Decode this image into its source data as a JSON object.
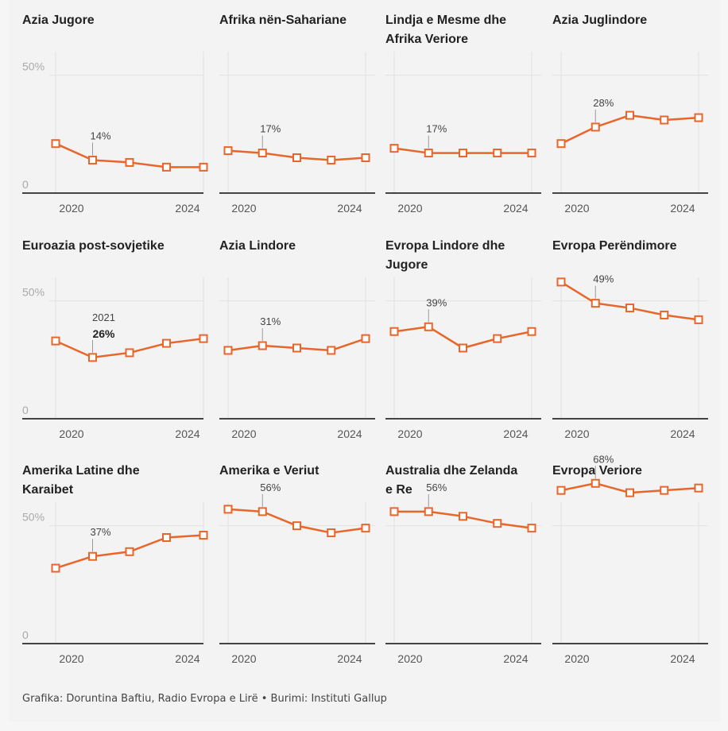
{
  "colors": {
    "series": "#e8662a",
    "grid": "#e2e2e2",
    "axis": "#444444",
    "background": "#f3f3f3"
  },
  "chart_data": [
    {
      "type": "line",
      "title": "Azia Jugore",
      "x": [
        2020,
        2021,
        2022,
        2023,
        2024
      ],
      "values": [
        21,
        14,
        13,
        11,
        11
      ],
      "annotation": {
        "x": 2021,
        "text": "14%"
      },
      "ylim": [
        0,
        60
      ],
      "yticks": [
        "50%",
        "0"
      ],
      "xticks": [
        "2020",
        "2024"
      ]
    },
    {
      "type": "line",
      "title": "Afrika nën-Sahariane",
      "x": [
        2020,
        2021,
        2022,
        2023,
        2024
      ],
      "values": [
        18,
        17,
        15,
        14,
        15
      ],
      "annotation": {
        "x": 2021,
        "text": "17%"
      },
      "ylim": [
        0,
        60
      ],
      "xticks": [
        "2020",
        "2024"
      ]
    },
    {
      "type": "line",
      "title": "Lindja e Mesme dhe Afrika Veriore",
      "x": [
        2020,
        2021,
        2022,
        2023,
        2024
      ],
      "values": [
        19,
        17,
        17,
        17,
        17
      ],
      "annotation": {
        "x": 2021,
        "text": "17%"
      },
      "ylim": [
        0,
        60
      ],
      "xticks": [
        "2020",
        "2024"
      ]
    },
    {
      "type": "line",
      "title": "Azia Juglindore",
      "x": [
        2020,
        2021,
        2022,
        2023,
        2024
      ],
      "values": [
        21,
        28,
        33,
        31,
        32
      ],
      "annotation": {
        "x": 2021,
        "text": "28%"
      },
      "ylim": [
        0,
        60
      ],
      "xticks": [
        "2020",
        "2024"
      ]
    },
    {
      "type": "line",
      "title": "Euroazia post-sovjetike",
      "x": [
        2020,
        2021,
        2022,
        2023,
        2024
      ],
      "values": [
        33,
        26,
        28,
        32,
        34
      ],
      "annotation": {
        "x": 2021,
        "text": "26%",
        "year": "2021",
        "bold": true
      },
      "ylim": [
        0,
        60
      ],
      "yticks": [
        "50%",
        "0"
      ],
      "xticks": [
        "2020",
        "2024"
      ]
    },
    {
      "type": "line",
      "title": "Azia Lindore",
      "x": [
        2020,
        2021,
        2022,
        2023,
        2024
      ],
      "values": [
        29,
        31,
        30,
        29,
        34
      ],
      "annotation": {
        "x": 2021,
        "text": "31%"
      },
      "ylim": [
        0,
        60
      ],
      "xticks": [
        "2020",
        "2024"
      ]
    },
    {
      "type": "line",
      "title": "Evropa Lindore dhe Jugore",
      "x": [
        2020,
        2021,
        2022,
        2023,
        2024
      ],
      "values": [
        37,
        39,
        30,
        34,
        37
      ],
      "annotation": {
        "x": 2021,
        "text": "39%"
      },
      "ylim": [
        0,
        60
      ],
      "xticks": [
        "2020",
        "2024"
      ]
    },
    {
      "type": "line",
      "title": "Evropa Perëndimore",
      "x": [
        2020,
        2021,
        2022,
        2023,
        2024
      ],
      "values": [
        58,
        49,
        47,
        44,
        42
      ],
      "annotation": {
        "x": 2021,
        "text": "49%"
      },
      "ylim": [
        0,
        60
      ],
      "xticks": [
        "2020",
        "2024"
      ]
    },
    {
      "type": "line",
      "title": "Amerika Latine dhe Karaibet",
      "x": [
        2020,
        2021,
        2022,
        2023,
        2024
      ],
      "values": [
        32,
        37,
        39,
        45,
        46
      ],
      "annotation": {
        "x": 2021,
        "text": "37%"
      },
      "ylim": [
        0,
        60
      ],
      "yticks": [
        "50%",
        "0"
      ],
      "xticks": [
        "2020",
        "2024"
      ]
    },
    {
      "type": "line",
      "title": "Amerika e Veriut",
      "x": [
        2020,
        2021,
        2022,
        2023,
        2024
      ],
      "values": [
        57,
        56,
        50,
        47,
        49
      ],
      "annotation": {
        "x": 2021,
        "text": "56%"
      },
      "ylim": [
        0,
        60
      ],
      "xticks": [
        "2020",
        "2024"
      ]
    },
    {
      "type": "line",
      "title": "Australia dhe Zelanda e Re",
      "x": [
        2020,
        2021,
        2022,
        2023,
        2024
      ],
      "values": [
        56,
        56,
        54,
        51,
        49
      ],
      "annotation": {
        "x": 2021,
        "text": "56%"
      },
      "ylim": [
        0,
        60
      ],
      "xticks": [
        "2020",
        "2024"
      ]
    },
    {
      "type": "line",
      "title": "Evropa Veriore",
      "x": [
        2020,
        2021,
        2022,
        2023,
        2024
      ],
      "values": [
        65,
        68,
        64,
        65,
        66
      ],
      "annotation": {
        "x": 2021,
        "text": "68%"
      },
      "ylim": [
        0,
        60
      ],
      "xticks": [
        "2020",
        "2024"
      ]
    }
  ],
  "footer": {
    "source": "Grafika: Doruntina Baftiu, Radio Evropa e Lirë • Burimi: Instituti Gallup"
  }
}
